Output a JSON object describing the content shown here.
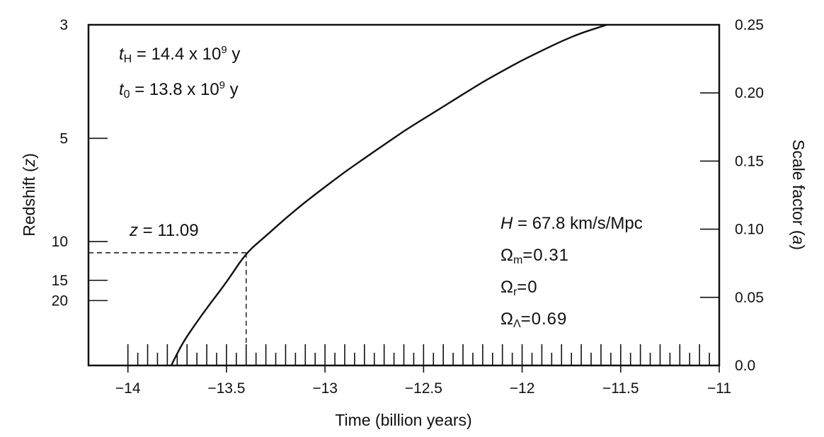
{
  "chart_data": {
    "type": "line",
    "xlabel": "Time (billion years)",
    "ylabel_left": "Redshift (z)",
    "ylabel_right": "Scale factor (a)",
    "xlim": [
      -14.2,
      -11
    ],
    "ylim_right": [
      0,
      0.25
    ],
    "x_ticks": [
      -14,
      -13.5,
      -13,
      -12.5,
      -12,
      -11.5,
      -11
    ],
    "x_tick_labels": [
      "−14",
      "−13.5",
      "−13",
      "−12.5",
      "−12",
      "−11.5",
      "−11"
    ],
    "right_ticks": [
      0.0,
      0.05,
      0.1,
      0.15,
      0.2,
      0.25
    ],
    "right_tick_labels": [
      "0.0",
      "0.05",
      "0.10",
      "0.15",
      "0.20",
      "0.25"
    ],
    "left_ticks": [
      3,
      5,
      10,
      15,
      20
    ],
    "left_tick_labels": [
      "3",
      "5",
      "10",
      "15",
      "20"
    ],
    "series": [
      {
        "x": [
          -13.78,
          -13.76,
          -13.72,
          -13.66,
          -13.58,
          -13.5,
          -13.4,
          -13.3,
          -13.2,
          -13.1,
          -13.0,
          -12.9,
          -12.8,
          -12.7,
          -12.6,
          -12.5,
          -12.4,
          -12.3,
          -12.2,
          -12.1,
          -12.0,
          -11.9,
          -11.8,
          -11.7,
          -11.57
        ],
        "a": [
          0.0,
          0.006,
          0.017,
          0.03,
          0.046,
          0.061,
          0.0827,
          0.095,
          0.108,
          0.12,
          0.131,
          0.142,
          0.152,
          0.162,
          0.172,
          0.181,
          0.19,
          0.199,
          0.208,
          0.216,
          0.224,
          0.231,
          0.238,
          0.244,
          0.25
        ]
      }
    ],
    "marker": {
      "x": -13.4,
      "a": 0.0827,
      "label": "z = 11.09"
    },
    "annotations_top_left": [
      {
        "var": "t",
        "sub": "H",
        "text": " = 14.4 x 10",
        "sup": "9",
        "unit": " y"
      },
      {
        "var": "t",
        "sub": "0",
        "text": " = 13.8 x 10",
        "sup": "9",
        "unit": " y"
      }
    ],
    "annotations_right": [
      {
        "sym": "H",
        "sub": "",
        "text": " = 67.8 km/s/Mpc",
        "italic": true
      },
      {
        "sym": "Ω",
        "sub": "m",
        "text": "=0.31",
        "italic": false
      },
      {
        "sym": "Ω",
        "sub": "r",
        "text": "=0",
        "italic": false
      },
      {
        "sym": "Ω",
        "sub": "Λ",
        "text": "=0.69",
        "italic": false
      }
    ],
    "grid": false
  }
}
